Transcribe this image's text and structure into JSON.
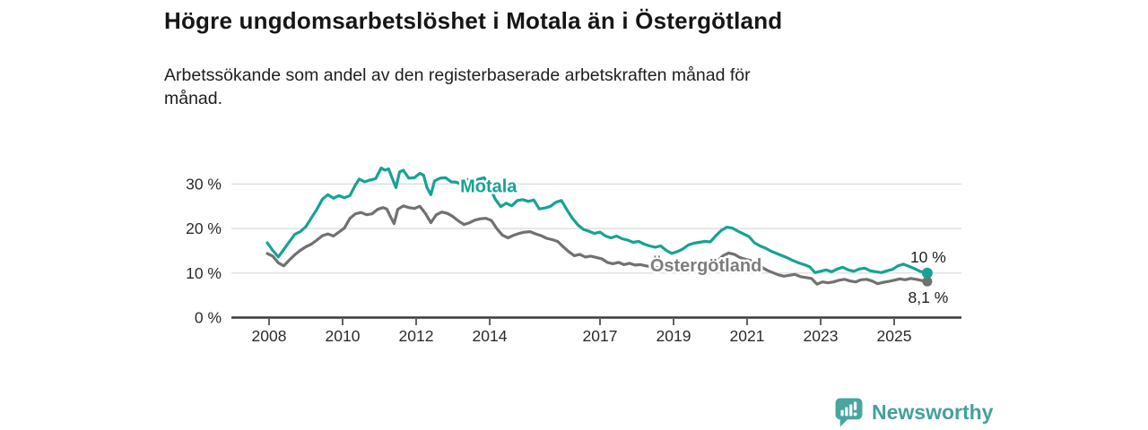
{
  "header": {
    "title": "Högre ungdomsarbetslöshet i Motala än i Östergötland",
    "subtitle": "Arbetssökande som andel av den registerbaserade arbetskraften månad för månad."
  },
  "chart_data": {
    "type": "line",
    "title": "Högre ungdomsarbetslöshet i Motala än i Östergötland",
    "subtitle": "Arbetssökande som andel av den registerbaserade arbetskraften månad för månad.",
    "xlabel": "",
    "ylabel": "",
    "unit": "%",
    "grid": "horizontal",
    "legend_position": "inline-labels",
    "xlim": [
      2007.9,
      2026.8
    ],
    "ylim": [
      0,
      35
    ],
    "x_ticks": [
      {
        "year": 2008,
        "label": "2008"
      },
      {
        "year": 2010,
        "label": "2010"
      },
      {
        "year": 2012,
        "label": "2012"
      },
      {
        "year": 2014,
        "label": "2014"
      },
      {
        "year": 2017,
        "label": "2017"
      },
      {
        "year": 2019,
        "label": "2019"
      },
      {
        "year": 2021,
        "label": "2021"
      },
      {
        "year": 2023,
        "label": "2023"
      },
      {
        "year": 2025,
        "label": "2025"
      }
    ],
    "y_ticks": [
      {
        "value": 0,
        "label": "0 %"
      },
      {
        "value": 10,
        "label": "10 %"
      },
      {
        "value": 20,
        "label": "20 %"
      },
      {
        "value": 30,
        "label": "30 %"
      }
    ],
    "series": [
      {
        "id": "ostergotland",
        "name": "Östergötland",
        "color": "#717171",
        "label_color": "#7d7d7d",
        "label_pos": {
          "x": 2019.88,
          "y": 10.4
        },
        "end_value": 8.1,
        "end_label": "8,1 %",
        "end_label_side": "below",
        "points": [
          [
            2007.95,
            14.4
          ],
          [
            2008.1,
            13.8
          ],
          [
            2008.25,
            12.3
          ],
          [
            2008.4,
            11.6
          ],
          [
            2008.55,
            12.9
          ],
          [
            2008.7,
            14.1
          ],
          [
            2008.85,
            15.1
          ],
          [
            2009.0,
            15.9
          ],
          [
            2009.15,
            16.5
          ],
          [
            2009.3,
            17.4
          ],
          [
            2009.45,
            18.4
          ],
          [
            2009.6,
            18.8
          ],
          [
            2009.75,
            18.3
          ],
          [
            2009.9,
            19.2
          ],
          [
            2010.05,
            20.1
          ],
          [
            2010.2,
            22.3
          ],
          [
            2010.35,
            23.3
          ],
          [
            2010.5,
            23.6
          ],
          [
            2010.65,
            23.1
          ],
          [
            2010.8,
            23.3
          ],
          [
            2010.95,
            24.3
          ],
          [
            2011.1,
            24.7
          ],
          [
            2011.2,
            24.4
          ],
          [
            2011.3,
            22.7
          ],
          [
            2011.4,
            21.1
          ],
          [
            2011.5,
            24.3
          ],
          [
            2011.65,
            25.1
          ],
          [
            2011.8,
            24.7
          ],
          [
            2011.95,
            24.5
          ],
          [
            2012.1,
            25.0
          ],
          [
            2012.25,
            23.4
          ],
          [
            2012.4,
            21.3
          ],
          [
            2012.55,
            23.1
          ],
          [
            2012.7,
            23.7
          ],
          [
            2012.85,
            23.4
          ],
          [
            2013.0,
            22.7
          ],
          [
            2013.15,
            21.7
          ],
          [
            2013.3,
            20.9
          ],
          [
            2013.45,
            21.3
          ],
          [
            2013.6,
            21.9
          ],
          [
            2013.75,
            22.2
          ],
          [
            2013.9,
            22.3
          ],
          [
            2014.05,
            21.8
          ],
          [
            2014.2,
            19.9
          ],
          [
            2014.35,
            18.5
          ],
          [
            2014.5,
            17.9
          ],
          [
            2014.65,
            18.5
          ],
          [
            2014.8,
            18.9
          ],
          [
            2014.95,
            19.2
          ],
          [
            2015.1,
            19.3
          ],
          [
            2015.25,
            18.8
          ],
          [
            2015.4,
            18.4
          ],
          [
            2015.55,
            17.8
          ],
          [
            2015.7,
            17.5
          ],
          [
            2015.85,
            17.1
          ],
          [
            2016.0,
            15.9
          ],
          [
            2016.15,
            14.8
          ],
          [
            2016.3,
            13.9
          ],
          [
            2016.45,
            14.2
          ],
          [
            2016.6,
            13.6
          ],
          [
            2016.75,
            13.8
          ],
          [
            2016.9,
            13.5
          ],
          [
            2017.05,
            13.2
          ],
          [
            2017.2,
            12.4
          ],
          [
            2017.35,
            12.1
          ],
          [
            2017.5,
            12.4
          ],
          [
            2017.65,
            11.9
          ],
          [
            2017.8,
            12.2
          ],
          [
            2017.95,
            11.8
          ],
          [
            2018.1,
            11.9
          ],
          [
            2018.25,
            11.6
          ],
          [
            2018.4,
            11.4
          ],
          [
            2018.55,
            11.2
          ],
          [
            2018.7,
            11.1
          ],
          [
            2018.85,
            10.9
          ],
          [
            2019.0,
            10.7
          ],
          [
            2019.15,
            10.9
          ],
          [
            2019.3,
            11.0
          ],
          [
            2019.45,
            11.2
          ],
          [
            2019.6,
            11.1
          ],
          [
            2019.75,
            11.3
          ],
          [
            2019.9,
            11.4
          ],
          [
            2020.05,
            11.8
          ],
          [
            2020.2,
            12.8
          ],
          [
            2020.35,
            13.9
          ],
          [
            2020.5,
            14.5
          ],
          [
            2020.65,
            14.2
          ],
          [
            2020.8,
            13.5
          ],
          [
            2020.95,
            13.1
          ],
          [
            2021.1,
            12.8
          ],
          [
            2021.25,
            12.1
          ],
          [
            2021.4,
            11.3
          ],
          [
            2021.55,
            10.6
          ],
          [
            2021.7,
            10.1
          ],
          [
            2021.85,
            9.6
          ],
          [
            2022.0,
            9.3
          ],
          [
            2022.15,
            9.5
          ],
          [
            2022.3,
            9.7
          ],
          [
            2022.45,
            9.2
          ],
          [
            2022.6,
            9.0
          ],
          [
            2022.75,
            8.8
          ],
          [
            2022.9,
            7.5
          ],
          [
            2023.05,
            8.0
          ],
          [
            2023.2,
            7.8
          ],
          [
            2023.35,
            8.0
          ],
          [
            2023.5,
            8.4
          ],
          [
            2023.65,
            8.6
          ],
          [
            2023.8,
            8.2
          ],
          [
            2023.95,
            8.0
          ],
          [
            2024.1,
            8.5
          ],
          [
            2024.25,
            8.6
          ],
          [
            2024.4,
            8.2
          ],
          [
            2024.55,
            7.6
          ],
          [
            2024.7,
            7.9
          ],
          [
            2024.85,
            8.1
          ],
          [
            2025.0,
            8.4
          ],
          [
            2025.15,
            8.7
          ],
          [
            2025.3,
            8.5
          ],
          [
            2025.45,
            8.8
          ],
          [
            2025.6,
            8.6
          ],
          [
            2025.75,
            8.3
          ],
          [
            2025.9,
            8.1
          ]
        ]
      },
      {
        "id": "motala",
        "name": "Motala",
        "color": "#17a295",
        "label_color": "#17a295",
        "label_pos": {
          "x": 2013.97,
          "y": 28.2
        },
        "end_value": 10.0,
        "end_label": "10 %",
        "end_label_side": "above",
        "points": [
          [
            2007.95,
            16.8
          ],
          [
            2008.1,
            15.1
          ],
          [
            2008.25,
            13.6
          ],
          [
            2008.4,
            15.3
          ],
          [
            2008.55,
            17.0
          ],
          [
            2008.7,
            18.7
          ],
          [
            2008.85,
            19.3
          ],
          [
            2009.0,
            20.4
          ],
          [
            2009.15,
            22.4
          ],
          [
            2009.3,
            24.3
          ],
          [
            2009.45,
            26.6
          ],
          [
            2009.6,
            27.6
          ],
          [
            2009.75,
            26.8
          ],
          [
            2009.9,
            27.4
          ],
          [
            2010.05,
            26.9
          ],
          [
            2010.2,
            27.4
          ],
          [
            2010.35,
            29.8
          ],
          [
            2010.45,
            31.1
          ],
          [
            2010.6,
            30.5
          ],
          [
            2010.75,
            30.9
          ],
          [
            2010.9,
            31.2
          ],
          [
            2011.05,
            33.6
          ],
          [
            2011.15,
            33.1
          ],
          [
            2011.25,
            33.4
          ],
          [
            2011.35,
            31.3
          ],
          [
            2011.45,
            29.2
          ],
          [
            2011.55,
            32.7
          ],
          [
            2011.65,
            33.1
          ],
          [
            2011.8,
            31.3
          ],
          [
            2011.95,
            31.4
          ],
          [
            2012.1,
            32.4
          ],
          [
            2012.2,
            32.0
          ],
          [
            2012.3,
            29.1
          ],
          [
            2012.4,
            27.6
          ],
          [
            2012.5,
            30.7
          ],
          [
            2012.65,
            31.3
          ],
          [
            2012.8,
            31.4
          ],
          [
            2012.95,
            30.5
          ],
          [
            2013.1,
            30.4
          ],
          [
            2013.25,
            29.8
          ],
          [
            2013.4,
            31.0
          ],
          [
            2013.55,
            30.3
          ],
          [
            2013.7,
            31.1
          ],
          [
            2013.85,
            31.4
          ],
          [
            2014.0,
            29.4
          ],
          [
            2014.15,
            26.6
          ],
          [
            2014.3,
            24.9
          ],
          [
            2014.45,
            25.7
          ],
          [
            2014.6,
            25.1
          ],
          [
            2014.75,
            26.3
          ],
          [
            2014.9,
            26.5
          ],
          [
            2015.05,
            26.1
          ],
          [
            2015.2,
            26.4
          ],
          [
            2015.35,
            24.4
          ],
          [
            2015.5,
            24.6
          ],
          [
            2015.65,
            25.0
          ],
          [
            2015.8,
            25.9
          ],
          [
            2015.95,
            26.3
          ],
          [
            2016.1,
            24.2
          ],
          [
            2016.25,
            22.3
          ],
          [
            2016.4,
            20.8
          ],
          [
            2016.55,
            19.8
          ],
          [
            2016.7,
            19.4
          ],
          [
            2016.85,
            18.9
          ],
          [
            2017.0,
            19.2
          ],
          [
            2017.15,
            18.3
          ],
          [
            2017.3,
            17.9
          ],
          [
            2017.45,
            18.3
          ],
          [
            2017.6,
            17.7
          ],
          [
            2017.75,
            17.4
          ],
          [
            2017.9,
            16.9
          ],
          [
            2018.05,
            17.1
          ],
          [
            2018.2,
            16.5
          ],
          [
            2018.35,
            16.1
          ],
          [
            2018.5,
            15.8
          ],
          [
            2018.65,
            16.1
          ],
          [
            2018.8,
            15.1
          ],
          [
            2018.95,
            14.4
          ],
          [
            2019.1,
            14.8
          ],
          [
            2019.25,
            15.4
          ],
          [
            2019.4,
            16.3
          ],
          [
            2019.55,
            16.7
          ],
          [
            2019.7,
            16.9
          ],
          [
            2019.85,
            17.1
          ],
          [
            2020.0,
            17.0
          ],
          [
            2020.15,
            18.4
          ],
          [
            2020.3,
            19.6
          ],
          [
            2020.45,
            20.3
          ],
          [
            2020.6,
            20.1
          ],
          [
            2020.75,
            19.4
          ],
          [
            2020.9,
            18.8
          ],
          [
            2021.05,
            18.2
          ],
          [
            2021.2,
            16.8
          ],
          [
            2021.35,
            16.1
          ],
          [
            2021.5,
            15.6
          ],
          [
            2021.65,
            14.9
          ],
          [
            2021.8,
            14.4
          ],
          [
            2021.95,
            13.9
          ],
          [
            2022.1,
            13.4
          ],
          [
            2022.25,
            12.8
          ],
          [
            2022.4,
            12.3
          ],
          [
            2022.55,
            11.9
          ],
          [
            2022.7,
            11.4
          ],
          [
            2022.85,
            10.1
          ],
          [
            2023.0,
            10.4
          ],
          [
            2023.15,
            10.7
          ],
          [
            2023.3,
            10.3
          ],
          [
            2023.45,
            10.9
          ],
          [
            2023.6,
            11.3
          ],
          [
            2023.75,
            10.7
          ],
          [
            2023.9,
            10.4
          ],
          [
            2024.05,
            10.9
          ],
          [
            2024.2,
            11.1
          ],
          [
            2024.35,
            10.5
          ],
          [
            2024.5,
            10.3
          ],
          [
            2024.65,
            10.1
          ],
          [
            2024.8,
            10.5
          ],
          [
            2024.95,
            10.8
          ],
          [
            2025.1,
            11.6
          ],
          [
            2025.25,
            12.0
          ],
          [
            2025.4,
            11.5
          ],
          [
            2025.55,
            11.0
          ],
          [
            2025.7,
            10.4
          ],
          [
            2025.9,
            10.0
          ]
        ]
      }
    ]
  },
  "footer": {
    "brand": "Newsworthy",
    "logo_icon": "newsworthy-chart-bubble-icon",
    "brand_color": "#44a09b"
  }
}
